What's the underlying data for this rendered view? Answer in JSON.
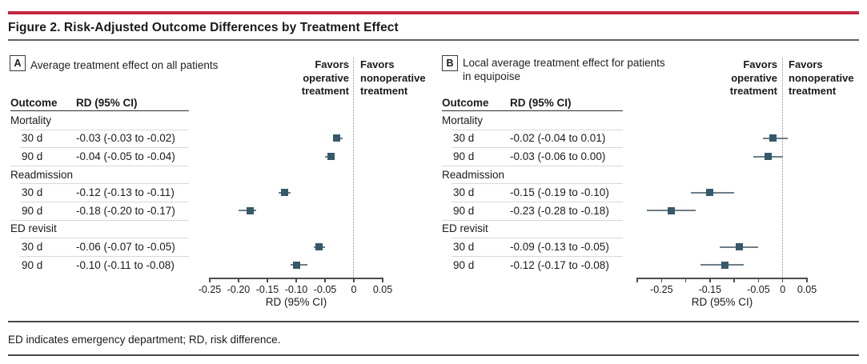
{
  "figure": {
    "title": "Figure 2. Risk-Adjusted Outcome Differences by Treatment Effect",
    "footnote": "ED indicates emergency department; RD, risk difference.",
    "accent_color": "#c22742",
    "marker_color": "#35596b",
    "ci_line_color": "#6e7d86"
  },
  "chart_data": [
    {
      "type": "forest",
      "panel": "A",
      "title": "Average treatment effect on all patients",
      "col_headers": [
        "Outcome",
        "RD (95% CI)"
      ],
      "favors_operative": "Favors\noperative\ntreatment",
      "favors_nonoperative": "Favors\nnonoperative\ntreatment",
      "xlabel": "RD (95% CI)",
      "axis": {
        "min": -0.25,
        "max": 0.05,
        "zero_line": 0,
        "ticks": [
          {
            "v": -0.25,
            "label": "-0.25"
          },
          {
            "v": -0.2,
            "label": "-0.20"
          },
          {
            "v": -0.15,
            "label": "-0.15"
          },
          {
            "v": -0.1,
            "label": "-0.10"
          },
          {
            "v": -0.05,
            "label": "-0.05"
          },
          {
            "v": 0,
            "label": "0"
          },
          {
            "v": 0.05,
            "label": "0.05"
          }
        ]
      },
      "rows": [
        {
          "type": "group",
          "label": "Mortality"
        },
        {
          "type": "item",
          "label": "30 d",
          "rd_text": "-0.03 (-0.03 to -0.02)",
          "value": -0.03,
          "lo": -0.03,
          "hi": -0.02
        },
        {
          "type": "item",
          "label": "90 d",
          "rd_text": "-0.04 (-0.05 to -0.04)",
          "value": -0.04,
          "lo": -0.05,
          "hi": -0.04
        },
        {
          "type": "group",
          "label": "Readmission"
        },
        {
          "type": "item",
          "label": "30 d",
          "rd_text": "-0.12 (-0.13 to -0.11)",
          "value": -0.12,
          "lo": -0.13,
          "hi": -0.11
        },
        {
          "type": "item",
          "label": "90 d",
          "rd_text": "-0.18 (-0.20 to -0.17)",
          "value": -0.18,
          "lo": -0.2,
          "hi": -0.17
        },
        {
          "type": "group",
          "label": "ED revisit"
        },
        {
          "type": "item",
          "label": "30 d",
          "rd_text": "-0.06 (-0.07 to -0.05)",
          "value": -0.06,
          "lo": -0.07,
          "hi": -0.05
        },
        {
          "type": "item",
          "label": "90 d",
          "rd_text": "-0.10 (-0.11 to -0.08)",
          "value": -0.1,
          "lo": -0.11,
          "hi": -0.08
        }
      ]
    },
    {
      "type": "forest",
      "panel": "B",
      "title": "Local average treatment effect for patients\nin equipoise",
      "col_headers": [
        "Outcome",
        "RD (95% CI)"
      ],
      "favors_operative": "Favors\noperative\ntreatment",
      "favors_nonoperative": "Favors\nnonoperative\ntreatment",
      "xlabel": "RD (95% CI)",
      "axis": {
        "min": -0.3,
        "max": 0.05,
        "zero_line": 0,
        "ticks": [
          {
            "v": -0.3,
            "label": ""
          },
          {
            "v": -0.25,
            "label": "-0.25"
          },
          {
            "v": -0.2,
            "label": ""
          },
          {
            "v": -0.15,
            "label": "-0.15"
          },
          {
            "v": -0.1,
            "label": ""
          },
          {
            "v": -0.05,
            "label": "-0.05"
          },
          {
            "v": 0,
            "label": "0"
          },
          {
            "v": 0.05,
            "label": "0.05"
          }
        ]
      },
      "rows": [
        {
          "type": "group",
          "label": "Mortality"
        },
        {
          "type": "item",
          "label": "30 d",
          "rd_text": "-0.02 (-0.04 to 0.01)",
          "value": -0.02,
          "lo": -0.04,
          "hi": 0.01
        },
        {
          "type": "item",
          "label": "90 d",
          "rd_text": "-0.03 (-0.06 to 0.00)",
          "value": -0.03,
          "lo": -0.06,
          "hi": 0.0
        },
        {
          "type": "group",
          "label": "Readmission"
        },
        {
          "type": "item",
          "label": "30 d",
          "rd_text": "-0.15 (-0.19 to -0.10)",
          "value": -0.15,
          "lo": -0.19,
          "hi": -0.1
        },
        {
          "type": "item",
          "label": "90 d",
          "rd_text": "-0.23 (-0.28 to -0.18)",
          "value": -0.23,
          "lo": -0.28,
          "hi": -0.18
        },
        {
          "type": "group",
          "label": "ED revisit"
        },
        {
          "type": "item",
          "label": "30 d",
          "rd_text": "-0.09 (-0.13 to -0.05)",
          "value": -0.09,
          "lo": -0.13,
          "hi": -0.05
        },
        {
          "type": "item",
          "label": "90 d",
          "rd_text": "-0.12 (-0.17 to -0.08)",
          "value": -0.12,
          "lo": -0.17,
          "hi": -0.08
        }
      ]
    }
  ]
}
